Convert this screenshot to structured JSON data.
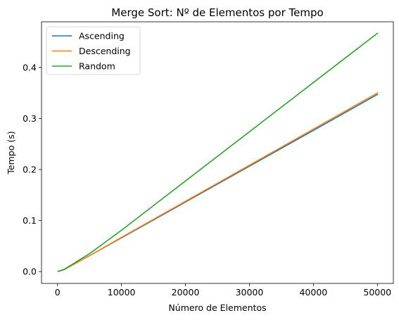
{
  "chart_data": {
    "type": "line",
    "title": "Merge Sort: Nº de Elementos por Tempo",
    "xlabel": "Número de Elementos",
    "ylabel": "Tempo (s)",
    "xlim": [
      -2500,
      52500
    ],
    "ylim": [
      -0.0233,
      0.4895
    ],
    "x_ticks": [
      0,
      10000,
      20000,
      30000,
      40000,
      50000
    ],
    "x_tick_labels": [
      "0",
      "10000",
      "20000",
      "30000",
      "40000",
      "50000"
    ],
    "y_ticks": [
      0.0,
      0.1,
      0.2,
      0.3,
      0.4
    ],
    "y_tick_labels": [
      "0.0",
      "0.1",
      "0.2",
      "0.3",
      "0.4"
    ],
    "grid": false,
    "legend_position": "top-left",
    "x": [
      100,
      1000,
      5000,
      10000,
      50000
    ],
    "series": [
      {
        "name": "Ascending",
        "color": "#1f77b4",
        "values": [
          0.0005,
          0.0035,
          0.031,
          0.066,
          0.347
        ]
      },
      {
        "name": "Descending",
        "color": "#ff7f0e",
        "values": [
          0.0005,
          0.0036,
          0.031,
          0.067,
          0.35
        ]
      },
      {
        "name": "Random",
        "color": "#2ca02c",
        "values": [
          0.0005,
          0.004,
          0.035,
          0.081,
          0.467
        ]
      }
    ]
  }
}
